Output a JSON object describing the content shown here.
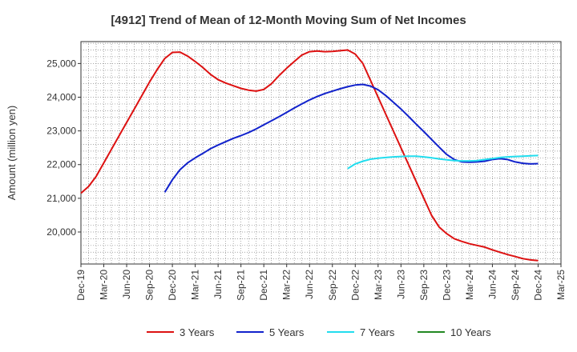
{
  "chart_data": {
    "type": "line",
    "title": "[4912]  Trend of Mean of 12-Month Moving Sum of Net Incomes",
    "xlabel": "",
    "ylabel": "Amount (million yen)",
    "xlim": [
      "2019-12",
      "2025-03"
    ],
    "ylim": [
      19050,
      25650
    ],
    "x_ticks": [
      "Dec-19",
      "Mar-20",
      "Jun-20",
      "Sep-20",
      "Dec-20",
      "Mar-21",
      "Jun-21",
      "Sep-21",
      "Dec-21",
      "Mar-22",
      "Jun-22",
      "Sep-22",
      "Dec-22",
      "Mar-23",
      "Jun-23",
      "Sep-23",
      "Dec-23",
      "Mar-24",
      "Jun-24",
      "Sep-24",
      "Dec-24",
      "Mar-25"
    ],
    "y_ticks": [
      20000,
      21000,
      22000,
      23000,
      24000,
      25000
    ],
    "y_tick_labels": [
      "20,000",
      "21,000",
      "22,000",
      "23,000",
      "24,000",
      "25,000"
    ],
    "grid": true,
    "legend_position": "bottom",
    "series": [
      {
        "name": "3 Years",
        "color": "#dd1111",
        "x": [
          "2019-12",
          "2020-01",
          "2020-02",
          "2020-03",
          "2020-04",
          "2020-05",
          "2020-06",
          "2020-07",
          "2020-08",
          "2020-09",
          "2020-10",
          "2020-11",
          "2020-12",
          "2021-01",
          "2021-02",
          "2021-03",
          "2021-04",
          "2021-05",
          "2021-06",
          "2021-07",
          "2021-08",
          "2021-09",
          "2021-10",
          "2021-11",
          "2021-12",
          "2022-01",
          "2022-02",
          "2022-03",
          "2022-04",
          "2022-05",
          "2022-06",
          "2022-07",
          "2022-08",
          "2022-09",
          "2022-10",
          "2022-11",
          "2022-12",
          "2023-01",
          "2023-02",
          "2023-03",
          "2023-04",
          "2023-05",
          "2023-06",
          "2023-07",
          "2023-08",
          "2023-09",
          "2023-10",
          "2023-11",
          "2023-12",
          "2024-01",
          "2024-02",
          "2024-03",
          "2024-04",
          "2024-05",
          "2024-06",
          "2024-07",
          "2024-08",
          "2024-09",
          "2024-10",
          "2024-11",
          "2024-12"
        ],
        "values": [
          21150,
          21350,
          21650,
          22050,
          22450,
          22850,
          23250,
          23650,
          24050,
          24450,
          24820,
          25150,
          25330,
          25340,
          25220,
          25060,
          24880,
          24680,
          24520,
          24420,
          24340,
          24260,
          24210,
          24180,
          24230,
          24400,
          24640,
          24860,
          25060,
          25250,
          25350,
          25370,
          25350,
          25360,
          25380,
          25400,
          25280,
          25000,
          24500,
          24000,
          23500,
          23000,
          22500,
          22000,
          21500,
          21000,
          20500,
          20150,
          19950,
          19800,
          19720,
          19650,
          19600,
          19550,
          19470,
          19400,
          19330,
          19270,
          19210,
          19170,
          19150
        ]
      },
      {
        "name": "5 Years",
        "color": "#1122cc",
        "x": [
          "2020-11",
          "2020-12",
          "2021-01",
          "2021-02",
          "2021-03",
          "2021-04",
          "2021-05",
          "2021-06",
          "2021-07",
          "2021-08",
          "2021-09",
          "2021-10",
          "2021-11",
          "2021-12",
          "2022-01",
          "2022-02",
          "2022-03",
          "2022-04",
          "2022-05",
          "2022-06",
          "2022-07",
          "2022-08",
          "2022-09",
          "2022-10",
          "2022-11",
          "2022-12",
          "2023-01",
          "2023-02",
          "2023-03",
          "2023-04",
          "2023-05",
          "2023-06",
          "2023-07",
          "2023-08",
          "2023-09",
          "2023-10",
          "2023-11",
          "2023-12",
          "2024-01",
          "2024-02",
          "2024-03",
          "2024-04",
          "2024-05",
          "2024-06",
          "2024-07",
          "2024-08",
          "2024-09",
          "2024-10",
          "2024-11",
          "2024-12"
        ],
        "values": [
          21180,
          21550,
          21850,
          22050,
          22200,
          22330,
          22470,
          22580,
          22680,
          22780,
          22860,
          22950,
          23060,
          23180,
          23300,
          23420,
          23550,
          23680,
          23800,
          23920,
          24020,
          24110,
          24180,
          24250,
          24310,
          24360,
          24380,
          24330,
          24220,
          24050,
          23850,
          23650,
          23430,
          23200,
          22980,
          22750,
          22520,
          22300,
          22150,
          22080,
          22070,
          22080,
          22100,
          22150,
          22180,
          22150,
          22080,
          22040,
          22020,
          22030
        ]
      },
      {
        "name": "7 Years",
        "color": "#22ddee",
        "x": [
          "2022-11",
          "2022-12",
          "2023-01",
          "2023-02",
          "2023-03",
          "2023-04",
          "2023-05",
          "2023-06",
          "2023-07",
          "2023-08",
          "2023-09",
          "2023-10",
          "2023-11",
          "2023-12",
          "2024-01",
          "2024-02",
          "2024-03",
          "2024-04",
          "2024-05",
          "2024-06",
          "2024-07",
          "2024-08",
          "2024-09",
          "2024-10",
          "2024-11",
          "2024-12"
        ],
        "values": [
          21880,
          22020,
          22100,
          22160,
          22190,
          22210,
          22230,
          22240,
          22250,
          22250,
          22230,
          22200,
          22170,
          22140,
          22120,
          22110,
          22110,
          22120,
          22150,
          22180,
          22210,
          22230,
          22240,
          22250,
          22260,
          22270
        ]
      },
      {
        "name": "10 Years",
        "color": "#228822",
        "x": [],
        "values": []
      }
    ]
  }
}
